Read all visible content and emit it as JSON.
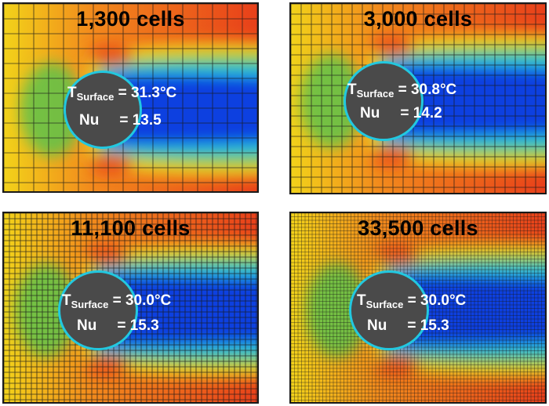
{
  "panels": [
    {
      "title": "1,300 cells",
      "t_symbol": "T",
      "t_subscript": "Surface",
      "t_value": "= 31.3°C",
      "nu_symbol": "Nu",
      "nu_value": "= 13.5",
      "grid": 19
    },
    {
      "title": "3,000 cells",
      "t_symbol": "T",
      "t_subscript": "Surface",
      "t_value": "= 30.8°C",
      "nu_symbol": "Nu",
      "nu_value": "= 14.2",
      "grid": 13
    },
    {
      "title": "11,100 cells",
      "t_symbol": "T",
      "t_subscript": "Surface",
      "t_value": "= 30.0°C",
      "nu_symbol": "Nu",
      "nu_value": "= 15.3",
      "grid": 7
    },
    {
      "title": "33,500 cells",
      "t_symbol": "T",
      "t_subscript": "Surface",
      "t_value": "= 30.0°C",
      "nu_symbol": "Nu",
      "nu_value": "= 15.3",
      "grid": 4.5
    }
  ],
  "colors": {
    "hot": "#e8401a",
    "warm": "#f28a1c",
    "mid": "#f2d21a",
    "green": "#5ec24a",
    "cyan": "#22c8e0",
    "cold": "#1040e0",
    "cylinder": "#4a4a4a"
  }
}
